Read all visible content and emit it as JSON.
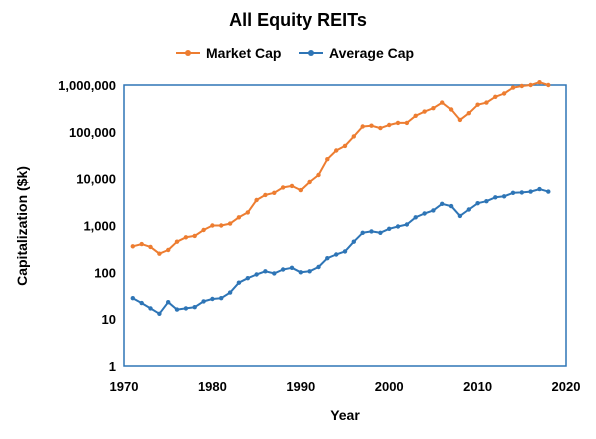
{
  "chart_data": {
    "type": "line",
    "title": "All Equity REITs",
    "xlabel": "Year",
    "ylabel": "Capitalization ($k)",
    "xlim": [
      1970,
      2020
    ],
    "ylim": [
      1,
      1000000
    ],
    "yscale": "log",
    "grid": false,
    "legend_position": "top",
    "x_ticks": [
      "1970",
      "1980",
      "1990",
      "2000",
      "2010",
      "2020"
    ],
    "y_ticks": [
      "1",
      "10",
      "100",
      "1,000",
      "10,000",
      "100,000",
      "1,000,000"
    ],
    "x": [
      1971,
      1972,
      1973,
      1974,
      1975,
      1976,
      1977,
      1978,
      1979,
      1980,
      1981,
      1982,
      1983,
      1984,
      1985,
      1986,
      1987,
      1988,
      1989,
      1990,
      1991,
      1992,
      1993,
      1994,
      1995,
      1996,
      1997,
      1998,
      1999,
      2000,
      2001,
      2002,
      2003,
      2004,
      2005,
      2006,
      2007,
      2008,
      2009,
      2010,
      2011,
      2012,
      2013,
      2014,
      2015,
      2016,
      2017,
      2018
    ],
    "series": [
      {
        "name": "Market Cap",
        "color": "#ED7D31",
        "values": [
          360,
          400,
          350,
          250,
          300,
          450,
          560,
          600,
          800,
          1000,
          1000,
          1100,
          1500,
          1900,
          3500,
          4500,
          5000,
          6500,
          7000,
          5700,
          8500,
          12000,
          26000,
          40000,
          50000,
          80000,
          130000,
          135000,
          120000,
          140000,
          155000,
          155000,
          220000,
          270000,
          320000,
          420000,
          300000,
          180000,
          250000,
          380000,
          420000,
          560000,
          660000,
          880000,
          950000,
          1000000,
          1150000,
          1000000
        ]
      },
      {
        "name": "Average Cap",
        "color": "#2E75B6",
        "values": [
          28,
          22,
          17,
          13,
          23,
          16,
          17,
          18,
          24,
          27,
          28,
          37,
          60,
          75,
          90,
          105,
          95,
          115,
          125,
          100,
          105,
          130,
          200,
          240,
          280,
          450,
          700,
          750,
          700,
          850,
          950,
          1050,
          1500,
          1800,
          2100,
          2900,
          2600,
          1600,
          2200,
          3000,
          3300,
          4000,
          4200,
          5000,
          5100,
          5300,
          6000,
          5300
        ]
      }
    ]
  }
}
